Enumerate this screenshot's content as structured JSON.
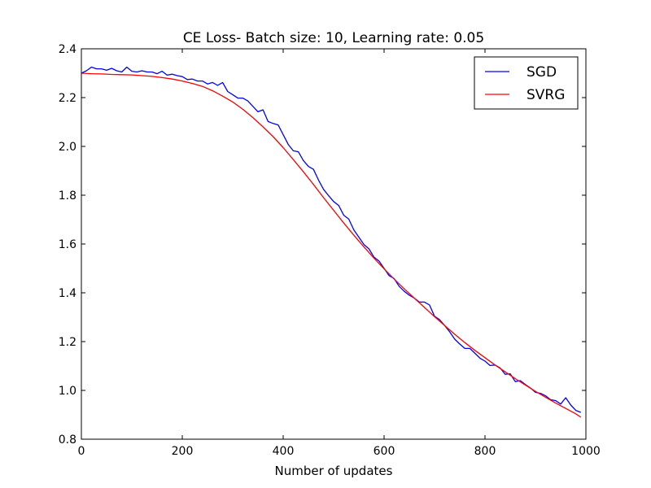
{
  "chart_data": {
    "type": "line",
    "title": "CE Loss- Batch size: 10, Learning rate: 0.05",
    "xlabel": "Number of updates",
    "ylabel": "",
    "xlim": [
      0,
      1000
    ],
    "ylim": [
      0.8,
      2.4
    ],
    "xticks": [
      0,
      200,
      400,
      600,
      800,
      1000
    ],
    "yticks": [
      0.8,
      1.0,
      1.2,
      1.4,
      1.6,
      1.8,
      2.0,
      2.2,
      2.4
    ],
    "xtick_labels": [
      "0",
      "200",
      "400",
      "600",
      "800",
      "1000"
    ],
    "ytick_labels": [
      "0.8",
      "1.0",
      "1.2",
      "1.4",
      "1.6",
      "1.8",
      "2.0",
      "2.2",
      "2.4"
    ],
    "grid": false,
    "legend_position": "top-right",
    "series": [
      {
        "name": "SGD",
        "color": "#0000ff",
        "x": [
          0,
          10,
          20,
          30,
          40,
          50,
          60,
          70,
          80,
          90,
          100,
          110,
          120,
          130,
          140,
          150,
          160,
          170,
          180,
          190,
          200,
          210,
          220,
          230,
          240,
          250,
          260,
          270,
          280,
          290,
          300,
          310,
          320,
          330,
          340,
          350,
          360,
          370,
          380,
          390,
          400,
          410,
          420,
          430,
          440,
          450,
          460,
          470,
          480,
          490,
          500,
          510,
          520,
          530,
          540,
          550,
          560,
          570,
          580,
          590,
          600,
          610,
          620,
          630,
          640,
          650,
          660,
          670,
          680,
          690,
          700,
          710,
          720,
          730,
          740,
          750,
          760,
          770,
          780,
          790,
          800,
          810,
          820,
          830,
          840,
          850,
          860,
          870,
          880,
          890,
          900,
          910,
          920,
          930,
          940,
          950,
          960,
          970,
          980,
          990
        ],
        "values": [
          2.3,
          2.31,
          2.325,
          2.318,
          2.318,
          2.312,
          2.32,
          2.31,
          2.305,
          2.325,
          2.308,
          2.305,
          2.31,
          2.305,
          2.305,
          2.298,
          2.308,
          2.292,
          2.296,
          2.29,
          2.286,
          2.274,
          2.276,
          2.268,
          2.268,
          2.256,
          2.262,
          2.25,
          2.262,
          2.225,
          2.212,
          2.198,
          2.198,
          2.186,
          2.164,
          2.142,
          2.15,
          2.102,
          2.094,
          2.088,
          2.048,
          2.008,
          1.982,
          1.978,
          1.942,
          1.918,
          1.906,
          1.862,
          1.824,
          1.798,
          1.774,
          1.758,
          1.718,
          1.702,
          1.658,
          1.628,
          1.598,
          1.58,
          1.546,
          1.53,
          1.5,
          1.47,
          1.458,
          1.426,
          1.406,
          1.39,
          1.378,
          1.362,
          1.362,
          1.35,
          1.304,
          1.29,
          1.266,
          1.24,
          1.21,
          1.19,
          1.172,
          1.172,
          1.152,
          1.132,
          1.12,
          1.102,
          1.104,
          1.092,
          1.066,
          1.068,
          1.036,
          1.04,
          1.024,
          1.01,
          0.992,
          0.988,
          0.978,
          0.962,
          0.958,
          0.944,
          0.97,
          0.94,
          0.918,
          0.91
        ]
      },
      {
        "name": "SVRG",
        "color": "#ff0000",
        "x": [
          0,
          20,
          40,
          60,
          80,
          100,
          120,
          140,
          160,
          180,
          200,
          220,
          240,
          260,
          280,
          300,
          320,
          340,
          360,
          380,
          400,
          420,
          440,
          460,
          480,
          500,
          520,
          540,
          560,
          580,
          600,
          620,
          640,
          660,
          680,
          700,
          720,
          740,
          760,
          780,
          800,
          820,
          840,
          860,
          880,
          900,
          920,
          940,
          960,
          980,
          990
        ],
        "values": [
          2.3,
          2.298,
          2.297,
          2.295,
          2.294,
          2.293,
          2.29,
          2.287,
          2.282,
          2.276,
          2.268,
          2.258,
          2.246,
          2.228,
          2.206,
          2.182,
          2.152,
          2.118,
          2.08,
          2.04,
          1.995,
          1.946,
          1.896,
          1.844,
          1.79,
          1.738,
          1.686,
          1.636,
          1.588,
          1.542,
          1.498,
          1.456,
          1.416,
          1.378,
          1.34,
          1.302,
          1.266,
          1.23,
          1.196,
          1.164,
          1.134,
          1.104,
          1.076,
          1.048,
          1.022,
          0.996,
          0.972,
          0.948,
          0.926,
          0.904,
          0.89
        ]
      }
    ]
  }
}
